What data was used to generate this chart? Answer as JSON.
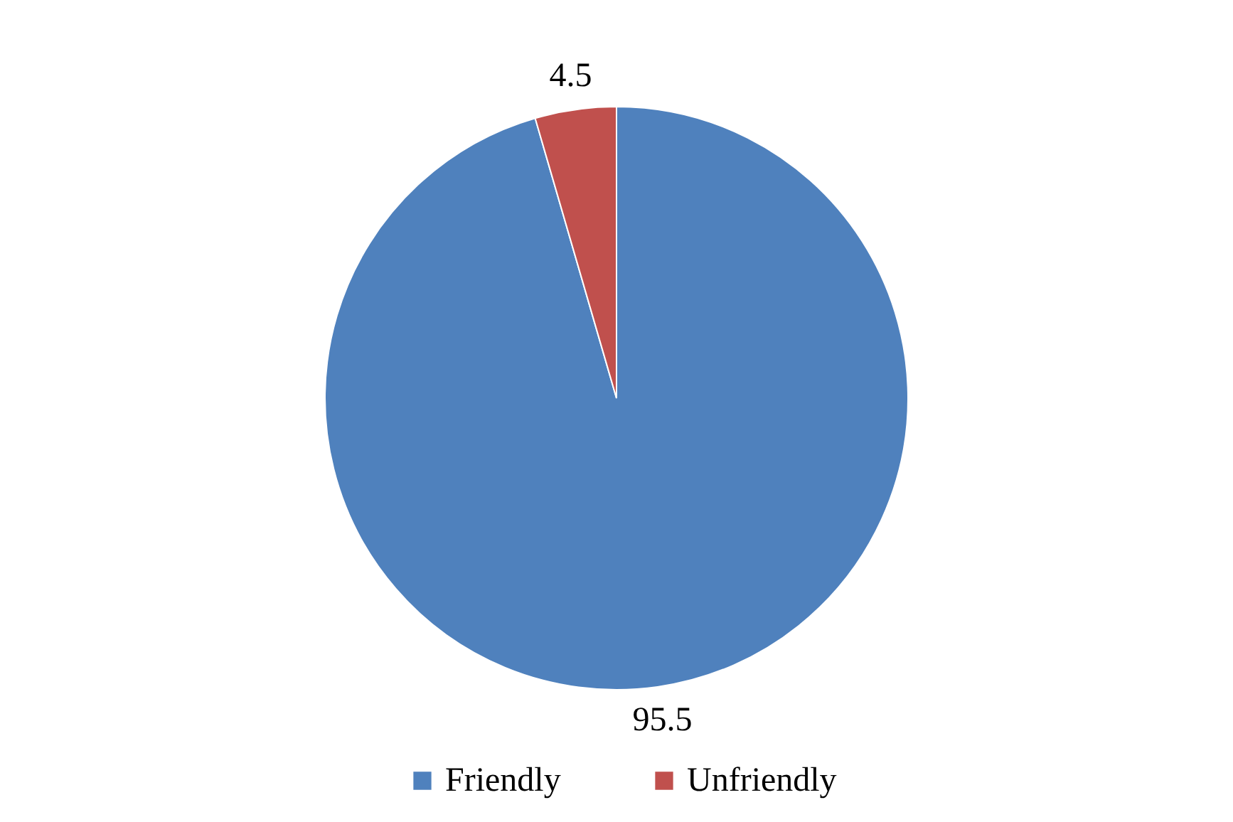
{
  "chart_data": {
    "type": "pie",
    "categories": [
      "Friendly",
      "Unfriendly"
    ],
    "values": [
      95.5,
      4.5
    ],
    "colors": [
      "#4f81bd",
      "#c0504d"
    ],
    "data_labels": true,
    "legend": "bottom"
  }
}
